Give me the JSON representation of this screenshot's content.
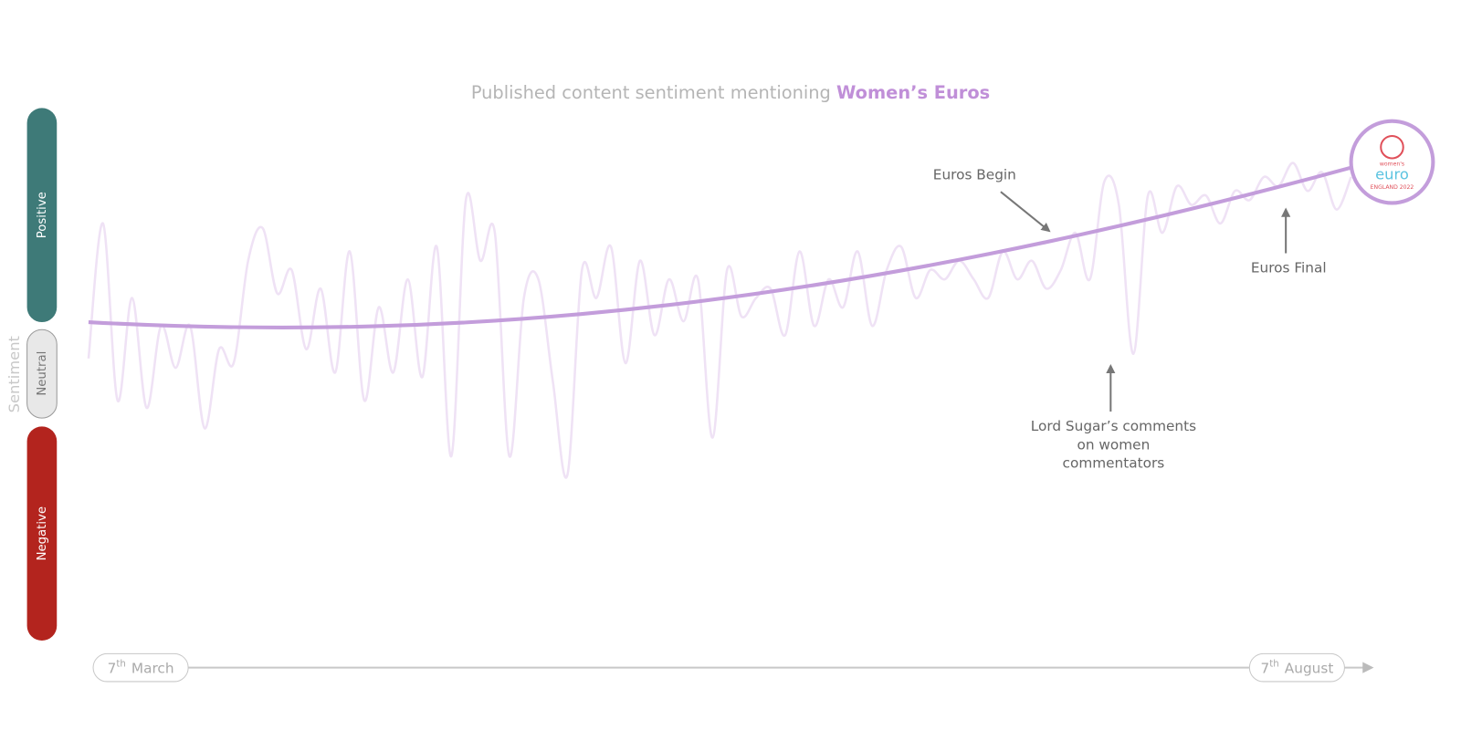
{
  "title": {
    "text": "Published content sentiment mentioning ",
    "highlight": "Women’s Euros"
  },
  "y_axis": {
    "label": "Sentiment",
    "bands": [
      "Positive",
      "Neutral",
      "Negative"
    ]
  },
  "x_axis": {
    "start": {
      "day": "7",
      "suffix": "th",
      "month": "March"
    },
    "end": {
      "day": "7",
      "suffix": "th",
      "month": "August"
    }
  },
  "annotations": [
    "Euros Begin",
    "Euros Final",
    "Lord Sugar’s comments",
    "on women",
    "commentators"
  ],
  "logo": {
    "top": "women's",
    "name": "euro",
    "bottom": "ENGLAND 2022"
  }
}
